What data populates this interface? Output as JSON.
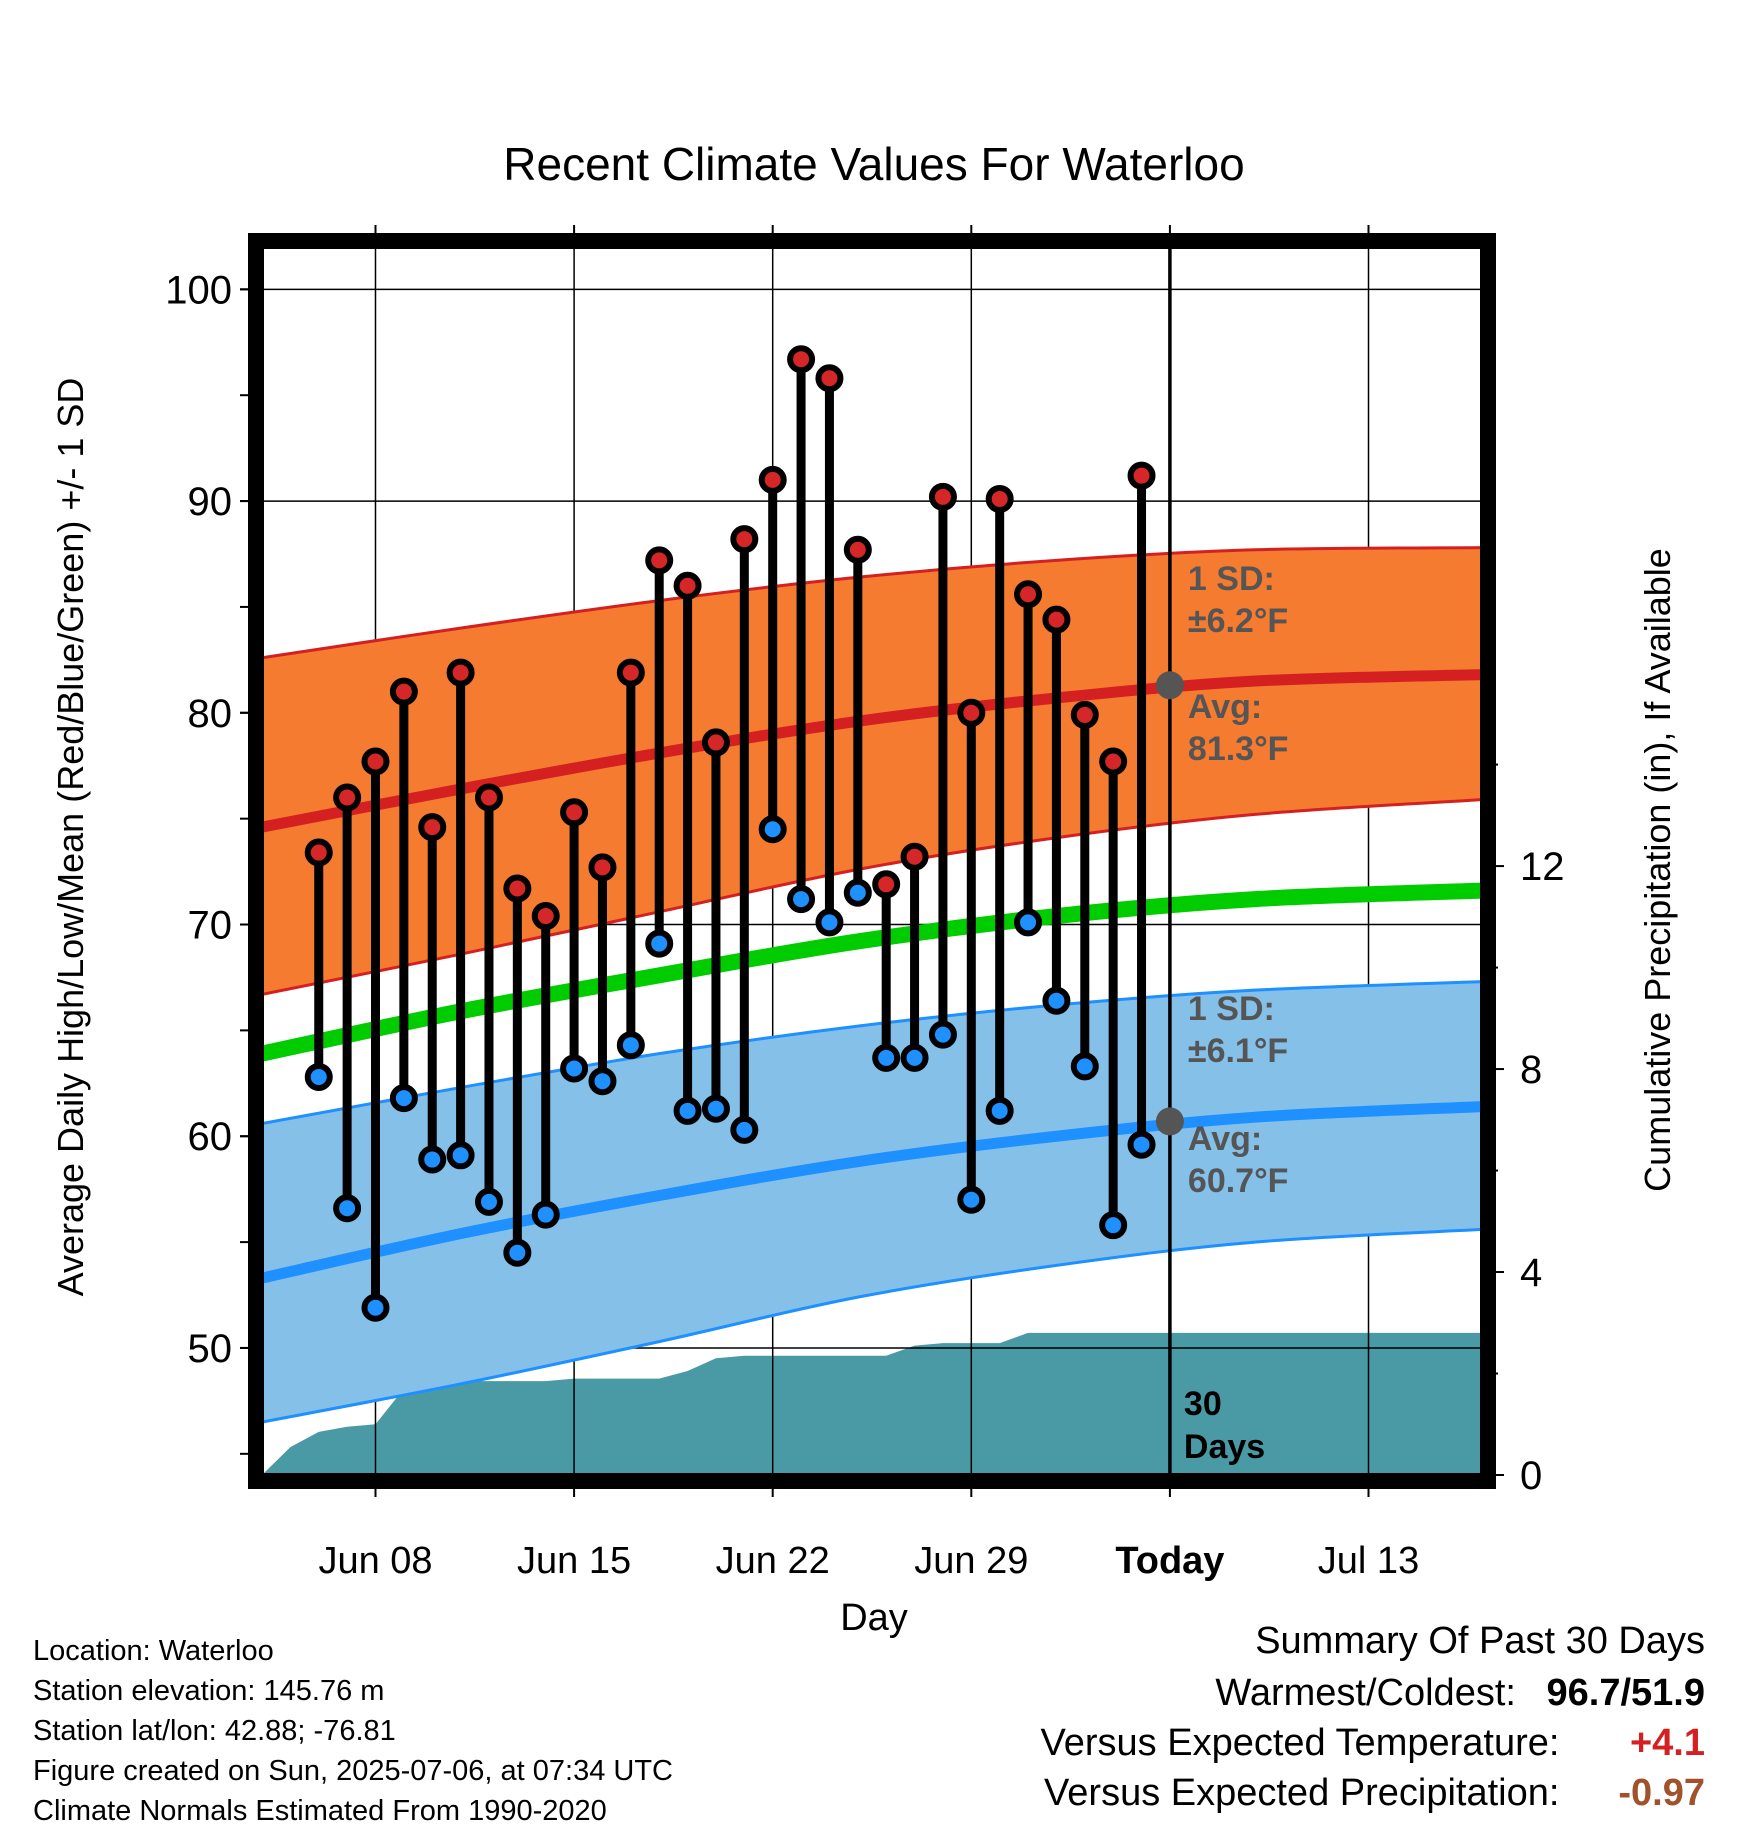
{
  "chart_data": {
    "type": "line",
    "title": "Recent Climate Values For Waterloo",
    "xlabel": "Day",
    "ylabel": "Average Daily High/Low/Mean (Red/Blue/Green) +/- 1 SD",
    "y2label": "Cumulative Precipitation (in), If Available",
    "ylim": [
      44,
      102
    ],
    "y2lim": [
      0,
      24.2
    ],
    "yticks": [
      "50",
      "60",
      "70",
      "80",
      "90",
      "100"
    ],
    "y2ticks": [
      "0",
      "4",
      "8",
      "12"
    ],
    "xlim": [
      "2025-06-04",
      "2025-07-17"
    ],
    "xticks": [
      {
        "date": "2025-06-08",
        "label": "Jun 08"
      },
      {
        "date": "2025-06-15",
        "label": "Jun 15"
      },
      {
        "date": "2025-06-22",
        "label": "Jun 22"
      },
      {
        "date": "2025-06-29",
        "label": "Jun 29"
      },
      {
        "date": "2025-07-06",
        "label": "Today"
      },
      {
        "date": "2025-07-13",
        "label": "Jul 13"
      }
    ],
    "dates": [
      "2025-06-06",
      "2025-06-07",
      "2025-06-08",
      "2025-06-09",
      "2025-06-10",
      "2025-06-11",
      "2025-06-12",
      "2025-06-13",
      "2025-06-14",
      "2025-06-15",
      "2025-06-16",
      "2025-06-17",
      "2025-06-18",
      "2025-06-19",
      "2025-06-20",
      "2025-06-21",
      "2025-06-22",
      "2025-06-23",
      "2025-06-24",
      "2025-06-25",
      "2025-06-26",
      "2025-06-27",
      "2025-06-28",
      "2025-06-29",
      "2025-06-30",
      "2025-07-01",
      "2025-07-02",
      "2025-07-03",
      "2025-07-04",
      "2025-07-05"
    ],
    "series": [
      {
        "name": "High",
        "color": "#d62728",
        "values": [
          73.4,
          76.0,
          77.7,
          81.0,
          74.6,
          81.9,
          76.0,
          71.7,
          70.4,
          75.3,
          72.7,
          81.9,
          87.2,
          86.0,
          78.6,
          88.2,
          91.0,
          96.7,
          95.8,
          87.7,
          71.9,
          73.2,
          90.2,
          80.0,
          90.1,
          85.6,
          84.4,
          79.9,
          77.7,
          91.2
        ]
      },
      {
        "name": "Low",
        "color": "#1e90ff",
        "values": [
          62.8,
          56.6,
          51.9,
          61.8,
          58.9,
          59.1,
          56.9,
          54.5,
          56.3,
          63.2,
          62.6,
          64.3,
          69.1,
          61.2,
          61.3,
          60.3,
          74.5,
          71.2,
          70.1,
          71.5,
          63.7,
          63.7,
          64.8,
          57.0,
          61.2,
          70.1,
          66.4,
          63.3,
          55.8,
          59.6
        ]
      }
    ],
    "normals": {
      "dates": [
        "2025-06-04",
        "2025-06-11",
        "2025-06-18",
        "2025-06-25",
        "2025-07-02",
        "2025-07-09",
        "2025-07-17"
      ],
      "high_mean": [
        74.6,
        76.4,
        78.1,
        79.6,
        80.7,
        81.5,
        81.8
      ],
      "low_mean": [
        53.3,
        55.4,
        57.2,
        58.8,
        60.0,
        60.9,
        61.4
      ],
      "mean": [
        63.9,
        65.9,
        67.6,
        69.2,
        70.4,
        71.2,
        71.6
      ],
      "high_band_top": [
        82.6,
        84.0,
        85.3,
        86.4,
        87.2,
        87.7,
        87.8
      ],
      "high_band_bottom": [
        66.7,
        68.6,
        70.6,
        72.6,
        74.1,
        75.2,
        75.9
      ],
      "low_band_top": [
        60.6,
        62.3,
        63.9,
        65.2,
        66.2,
        66.9,
        67.3
      ],
      "low_band_bottom": [
        46.5,
        48.3,
        50.3,
        52.4,
        53.9,
        55.0,
        55.6
      ]
    },
    "precip": {
      "dates": [
        "2025-06-04",
        "2025-06-05",
        "2025-06-06",
        "2025-06-07",
        "2025-06-08",
        "2025-06-09",
        "2025-06-10",
        "2025-06-11",
        "2025-06-12",
        "2025-06-13",
        "2025-06-14",
        "2025-06-15",
        "2025-06-16",
        "2025-06-17",
        "2025-06-18",
        "2025-06-19",
        "2025-06-20",
        "2025-06-21",
        "2025-06-22",
        "2025-06-23",
        "2025-06-24",
        "2025-06-25",
        "2025-06-26",
        "2025-06-27",
        "2025-06-28",
        "2025-06-29",
        "2025-06-30",
        "2025-07-01",
        "2025-07-02",
        "2025-07-17"
      ],
      "values": [
        0.0,
        0.55,
        0.85,
        0.95,
        1.0,
        1.7,
        1.85,
        1.85,
        1.85,
        1.85,
        1.85,
        1.9,
        1.9,
        1.9,
        1.9,
        2.05,
        2.3,
        2.35,
        2.35,
        2.35,
        2.35,
        2.35,
        2.35,
        2.55,
        2.6,
        2.6,
        2.6,
        2.8,
        2.8,
        2.8
      ]
    },
    "today_date": "2025-07-06",
    "annotations": {
      "high_sd": "1 SD:",
      "high_sd_value": "±6.2°F",
      "high_avg": "Avg:",
      "high_avg_value": "81.3°F",
      "high_avg_num": 81.3,
      "low_sd": "1 SD:",
      "low_sd_value": "±6.1°F",
      "low_avg": "Avg:",
      "low_avg_value": "60.7°F",
      "low_avg_num": 60.7,
      "days_num": "30",
      "days_label": "Days"
    },
    "colors": {
      "high_band": "#f47b2f",
      "high_band_edge": "#d42020",
      "high_line": "#d42020",
      "low_band": "#85c0e8",
      "low_band_edge": "#1e90ff",
      "low_line": "#1e90ff",
      "mean_line": "#00cc00",
      "precip": "#4a9aa5",
      "annotation_text": "#555555",
      "avg_marker": "#555555"
    },
    "grid": true
  },
  "footer": {
    "location": "Location: Waterloo",
    "elevation": "Station elevation: 145.76 m",
    "latlon": "Station lat/lon: 42.88; -76.81",
    "created": "Figure created on Sun, 2025-07-06, at 07:34 UTC",
    "normals": "Climate Normals Estimated From 1990-2020"
  },
  "summary": {
    "title": "Summary Of Past 30 Days",
    "warm_cold_label": "Warmest/Coldest:",
    "warm_cold_value": "96.7/51.9",
    "temp_label": "Versus Expected Temperature:",
    "temp_value": "+4.1",
    "temp_color": "#d42020",
    "precip_label": "Versus Expected Precipitation:",
    "precip_value": "-0.97",
    "precip_color": "#a0522d"
  }
}
